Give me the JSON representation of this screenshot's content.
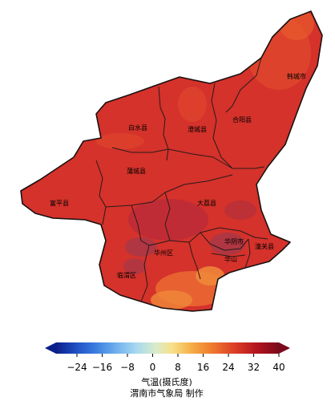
{
  "map": {
    "counties": [
      {
        "id": "hancheng",
        "label": "韩城市"
      },
      {
        "id": "baishui",
        "label": "白水县"
      },
      {
        "id": "chengcheng",
        "label": "澄城县"
      },
      {
        "id": "heyang",
        "label": "合阳县"
      },
      {
        "id": "pucheng",
        "label": "蒲城县"
      },
      {
        "id": "fuping",
        "label": "富平县"
      },
      {
        "id": "dali",
        "label": "大荔县"
      },
      {
        "id": "huayin",
        "label": "华阴市"
      },
      {
        "id": "tongguan",
        "label": "潼关县"
      },
      {
        "id": "huazhou",
        "label": "华州区"
      },
      {
        "id": "huashan",
        "label": "华山"
      },
      {
        "id": "linwei",
        "label": "临渭区"
      }
    ],
    "colors": {
      "base_fill": "#d4322b",
      "warm_patch": "#e85a2c",
      "hot_patch": "#f0893a",
      "cool_patch": "#b8293a",
      "cooler_patch": "#8f3a55",
      "border": "#2a1a1a"
    }
  },
  "colorbar": {
    "ticks": [
      "−24",
      "−16",
      "−8",
      "0",
      "8",
      "16",
      "24",
      "32",
      "40"
    ],
    "min": -32,
    "max": 40,
    "colors": [
      "#0b1f8a",
      "#1f4fc4",
      "#3b7fe0",
      "#6fb0ee",
      "#a6d8f0",
      "#d9ecc8",
      "#f7e08a",
      "#f6b24a",
      "#ee7a2e",
      "#dc3e26",
      "#b4151d",
      "#7a0a1c"
    ]
  },
  "caption": {
    "unit": "气温(摄氏度)",
    "producer": "渭南市气象局 制作"
  }
}
